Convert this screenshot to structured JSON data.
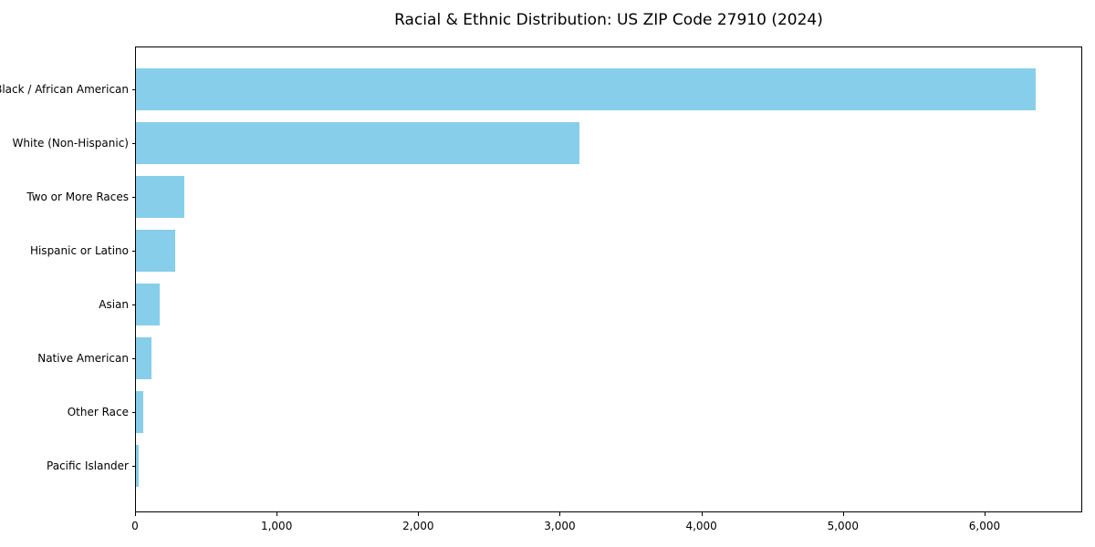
{
  "chart_data": {
    "type": "bar",
    "orientation": "horizontal",
    "title": "Racial & Ethnic Distribution: US ZIP Code 27910 (2024)",
    "categories": [
      "Black / African American",
      "White (Non-Hispanic)",
      "Two or More Races",
      "Hispanic or Latino",
      "Asian",
      "Native American",
      "Other Race",
      "Pacific Islander"
    ],
    "values": [
      6370,
      3140,
      340,
      280,
      170,
      110,
      50,
      20
    ],
    "xlabel": "",
    "ylabel": "",
    "xlim": [
      0,
      6690
    ],
    "x_ticks": [
      {
        "value": 0,
        "label": "0"
      },
      {
        "value": 1000,
        "label": "1,000"
      },
      {
        "value": 2000,
        "label": "2,000"
      },
      {
        "value": 3000,
        "label": "3,000"
      },
      {
        "value": 4000,
        "label": "4,000"
      },
      {
        "value": 5000,
        "label": "5,000"
      },
      {
        "value": 6000,
        "label": "6,000"
      }
    ],
    "grid": false,
    "legend": null,
    "colors": {
      "bar_fill": "#87CEEB",
      "spine": "#000000",
      "text": "#000000",
      "background": "#ffffff"
    }
  }
}
